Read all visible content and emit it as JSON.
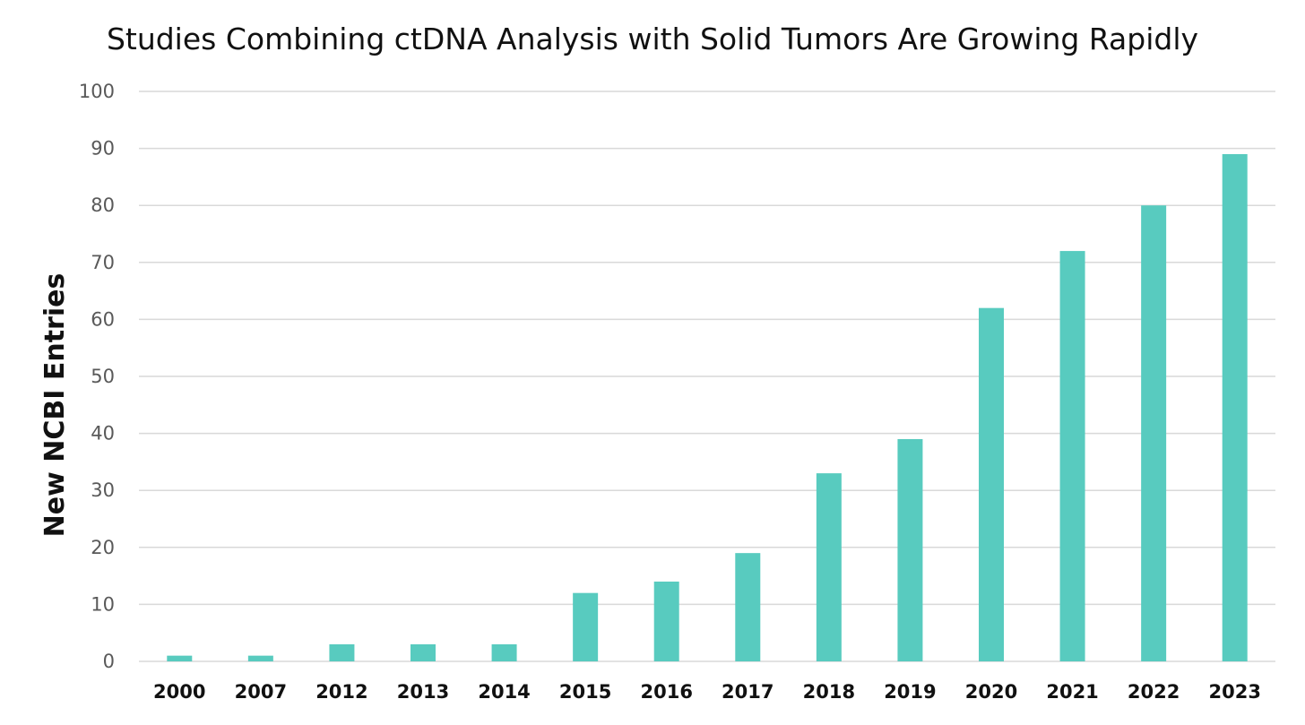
{
  "chart_data": {
    "type": "bar",
    "title": "Studies Combining ctDNA Analysis with Solid Tumors Are Growing Rapidly",
    "xlabel": "",
    "ylabel": "New NCBI Entries",
    "categories": [
      "2000",
      "2007",
      "2012",
      "2013",
      "2014",
      "2015",
      "2016",
      "2017",
      "2018",
      "2019",
      "2020",
      "2021",
      "2022",
      "2023"
    ],
    "values": [
      1,
      1,
      3,
      3,
      3,
      12,
      14,
      19,
      33,
      39,
      62,
      72,
      80,
      89
    ],
    "ylim": [
      0,
      100
    ],
    "yticks": [
      0,
      10,
      20,
      30,
      40,
      50,
      60,
      70,
      80,
      90,
      100
    ],
    "grid": true,
    "legend": "none",
    "bar_color": "#58CBBF",
    "grid_color": "#D9D9D9"
  }
}
